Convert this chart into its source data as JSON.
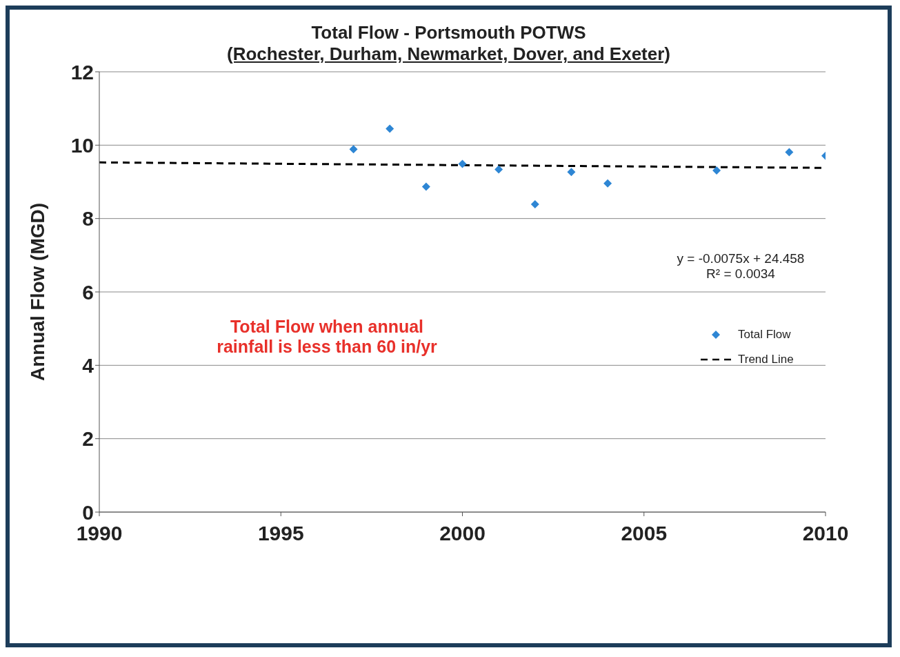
{
  "chart_data": {
    "type": "scatter",
    "title": "Total Flow - Portsmouth POTWS",
    "subtitle": "(Rochester, Durham, Newmarket, Dover, and Exeter)",
    "ylabel": "Annual Flow (MGD)",
    "series": [
      {
        "name": "Total Flow",
        "color": "#2e86d4",
        "marker": "diamond",
        "x": [
          1997,
          1998,
          1999,
          2000,
          2001,
          2002,
          2003,
          2004,
          2007,
          2009,
          2010
        ],
        "values": [
          9.89,
          10.45,
          8.87,
          9.49,
          9.34,
          8.39,
          9.27,
          8.96,
          9.31,
          9.81,
          9.71
        ]
      },
      {
        "name": "Trend Line",
        "type": "line",
        "color": "#000000",
        "line_style": "dashed",
        "x": [
          1990,
          2010
        ],
        "values": [
          9.53,
          9.38
        ]
      }
    ],
    "xlim": [
      1990,
      2010
    ],
    "xticks": [
      1990,
      1995,
      2000,
      2005,
      2010
    ],
    "ylim": [
      0,
      12
    ],
    "yticks": [
      0,
      2,
      4,
      6,
      8,
      10,
      12
    ],
    "grid": "y",
    "legend": "right",
    "annotations": [
      "y = -0.0075x + 24.458",
      "R² = 0.0034",
      "Total Flow when annual rainfall is less than 60 in/yr"
    ]
  }
}
